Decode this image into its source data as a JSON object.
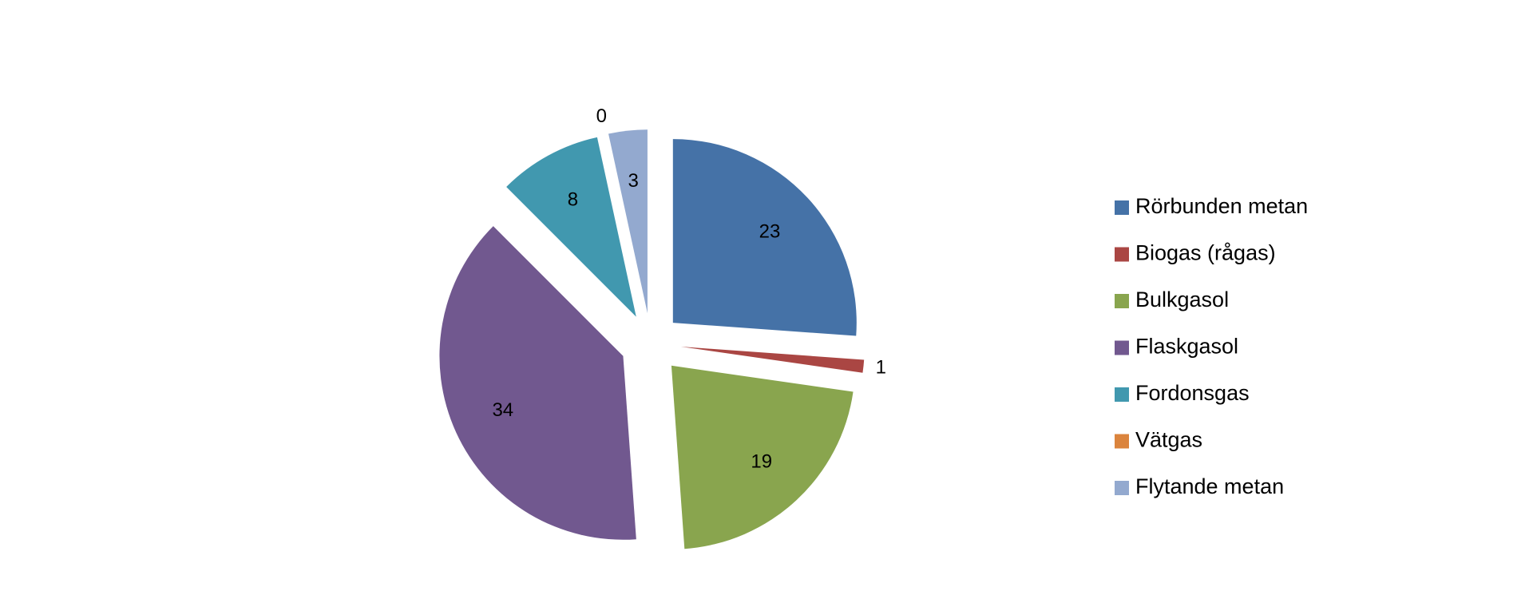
{
  "chart_data": {
    "type": "pie",
    "categories": [
      "Rörbunden metan",
      "Biogas (rågas)",
      "Bulkgasol",
      "Flaskgasol",
      "Fordonsgas",
      "Vätgas",
      "Flytande metan"
    ],
    "values": [
      23,
      1,
      19,
      34,
      8,
      0,
      3
    ],
    "colors": [
      "#4572a7",
      "#aa4643",
      "#89a54e",
      "#71588f",
      "#4198af",
      "#db843d",
      "#93a9cf"
    ],
    "legend": "right"
  }
}
